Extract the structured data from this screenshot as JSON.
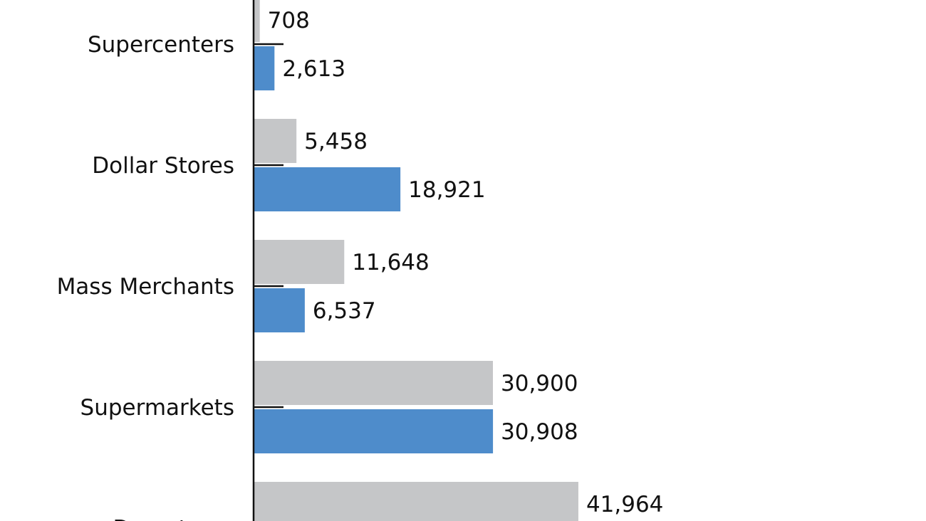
{
  "chart_data": {
    "type": "bar",
    "orientation": "horizontal",
    "categories": [
      "Supercenters",
      "Dollar Stores",
      "Mass Merchants",
      "Supermarkets",
      "Drugstores"
    ],
    "series": [
      {
        "values": [
          708,
          5458,
          11648,
          30900,
          41964
        ],
        "labels": [
          "708",
          "5,458",
          "11,648",
          "30,900",
          "41,964"
        ],
        "color": "#c5c6c8"
      },
      {
        "values": [
          2613,
          18921,
          6537,
          30908,
          null
        ],
        "labels": [
          "2,613",
          "18,921",
          "6,537",
          "30,908",
          ""
        ],
        "color": "#4e8ccb"
      }
    ],
    "axis_color": "#111111",
    "grid": false,
    "legend": "none"
  }
}
